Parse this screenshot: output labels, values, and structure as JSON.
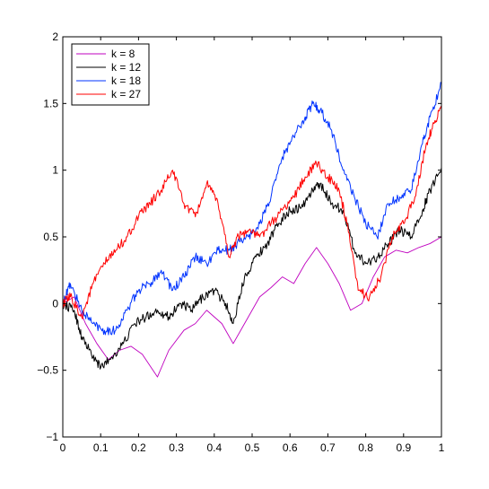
{
  "chart_data": {
    "type": "line",
    "title": "",
    "xlabel": "",
    "ylabel": "",
    "xlim": [
      0,
      1
    ],
    "ylim": [
      -1,
      2
    ],
    "xticks": [
      0,
      0.1,
      0.2,
      0.3,
      0.4,
      0.5,
      0.6,
      0.7,
      0.8,
      0.9,
      1
    ],
    "xtick_labels": [
      "0",
      "0.1",
      "0.2",
      "0.3",
      "0.4",
      "0.5",
      "0.6",
      "0.7",
      "0.8",
      "0.9",
      "1"
    ],
    "yticks": [
      -1,
      -0.5,
      0,
      0.5,
      1,
      1.5,
      2
    ],
    "ytick_labels": [
      "−1",
      "−0.5",
      "0",
      "0.5",
      "1",
      "1.5",
      "2"
    ],
    "grid": false,
    "legend_position": "top-left",
    "series": [
      {
        "name": "k = 8",
        "color": "#bf00bf",
        "x": [
          0,
          0.03,
          0.06,
          0.09,
          0.12,
          0.15,
          0.18,
          0.21,
          0.25,
          0.28,
          0.32,
          0.35,
          0.38,
          0.42,
          0.45,
          0.48,
          0.52,
          0.55,
          0.58,
          0.61,
          0.64,
          0.67,
          0.7,
          0.73,
          0.76,
          0.79,
          0.82,
          0.85,
          0.88,
          0.91,
          0.94,
          0.97,
          1.0
        ],
        "y": [
          0,
          0.05,
          -0.15,
          -0.3,
          -0.42,
          -0.35,
          -0.32,
          -0.38,
          -0.55,
          -0.35,
          -0.2,
          -0.15,
          -0.05,
          -0.15,
          -0.3,
          -0.15,
          0.05,
          0.12,
          0.2,
          0.15,
          0.3,
          0.42,
          0.3,
          0.15,
          -0.05,
          0.0,
          0.2,
          0.35,
          0.4,
          0.38,
          0.42,
          0.45,
          0.5
        ]
      },
      {
        "name": "k = 12",
        "color": "#000000",
        "x": [
          0,
          0.03,
          0.05,
          0.08,
          0.1,
          0.13,
          0.16,
          0.19,
          0.22,
          0.25,
          0.28,
          0.31,
          0.34,
          0.37,
          0.4,
          0.43,
          0.45,
          0.48,
          0.51,
          0.54,
          0.57,
          0.6,
          0.63,
          0.66,
          0.68,
          0.71,
          0.74,
          0.77,
          0.8,
          0.83,
          0.86,
          0.89,
          0.92,
          0.95,
          0.97,
          1.0
        ],
        "y": [
          0,
          -0.05,
          -0.25,
          -0.4,
          -0.48,
          -0.4,
          -0.3,
          -0.15,
          -0.1,
          -0.05,
          -0.1,
          0.0,
          -0.05,
          0.05,
          0.1,
          0.0,
          -0.15,
          0.2,
          0.35,
          0.45,
          0.6,
          0.7,
          0.72,
          0.85,
          0.9,
          0.75,
          0.7,
          0.4,
          0.3,
          0.35,
          0.45,
          0.55,
          0.5,
          0.7,
          0.85,
          1.02
        ]
      },
      {
        "name": "k = 18",
        "color": "#0033ff",
        "x": [
          0,
          0.02,
          0.05,
          0.08,
          0.11,
          0.14,
          0.17,
          0.2,
          0.23,
          0.26,
          0.29,
          0.32,
          0.35,
          0.38,
          0.41,
          0.44,
          0.46,
          0.49,
          0.52,
          0.55,
          0.58,
          0.61,
          0.64,
          0.66,
          0.68,
          0.71,
          0.74,
          0.77,
          0.8,
          0.83,
          0.86,
          0.89,
          0.92,
          0.95,
          0.97,
          1.0
        ],
        "y": [
          0,
          0.15,
          -0.05,
          -0.15,
          -0.2,
          -0.2,
          -0.05,
          0.1,
          0.15,
          0.25,
          0.1,
          0.2,
          0.35,
          0.3,
          0.4,
          0.4,
          0.45,
          0.5,
          0.6,
          0.8,
          1.1,
          1.25,
          1.4,
          1.5,
          1.45,
          1.3,
          1.0,
          0.8,
          0.6,
          0.5,
          0.75,
          0.8,
          0.85,
          1.2,
          1.4,
          1.65
        ]
      },
      {
        "name": "k = 27",
        "color": "#ff0000",
        "x": [
          0,
          0.02,
          0.05,
          0.08,
          0.11,
          0.14,
          0.17,
          0.2,
          0.23,
          0.26,
          0.29,
          0.32,
          0.35,
          0.38,
          0.41,
          0.44,
          0.46,
          0.49,
          0.52,
          0.55,
          0.58,
          0.61,
          0.64,
          0.67,
          0.7,
          0.73,
          0.75,
          0.78,
          0.81,
          0.84,
          0.87,
          0.9,
          0.93,
          0.96,
          0.98,
          1.0
        ],
        "y": [
          0,
          0.05,
          -0.1,
          0.15,
          0.3,
          0.4,
          0.5,
          0.65,
          0.75,
          0.85,
          1.0,
          0.75,
          0.65,
          0.9,
          0.75,
          0.35,
          0.5,
          0.55,
          0.5,
          0.6,
          0.7,
          0.8,
          0.95,
          1.05,
          0.95,
          0.85,
          0.6,
          0.1,
          0.05,
          0.2,
          0.5,
          0.6,
          0.8,
          1.2,
          1.35,
          1.48
        ]
      }
    ]
  }
}
